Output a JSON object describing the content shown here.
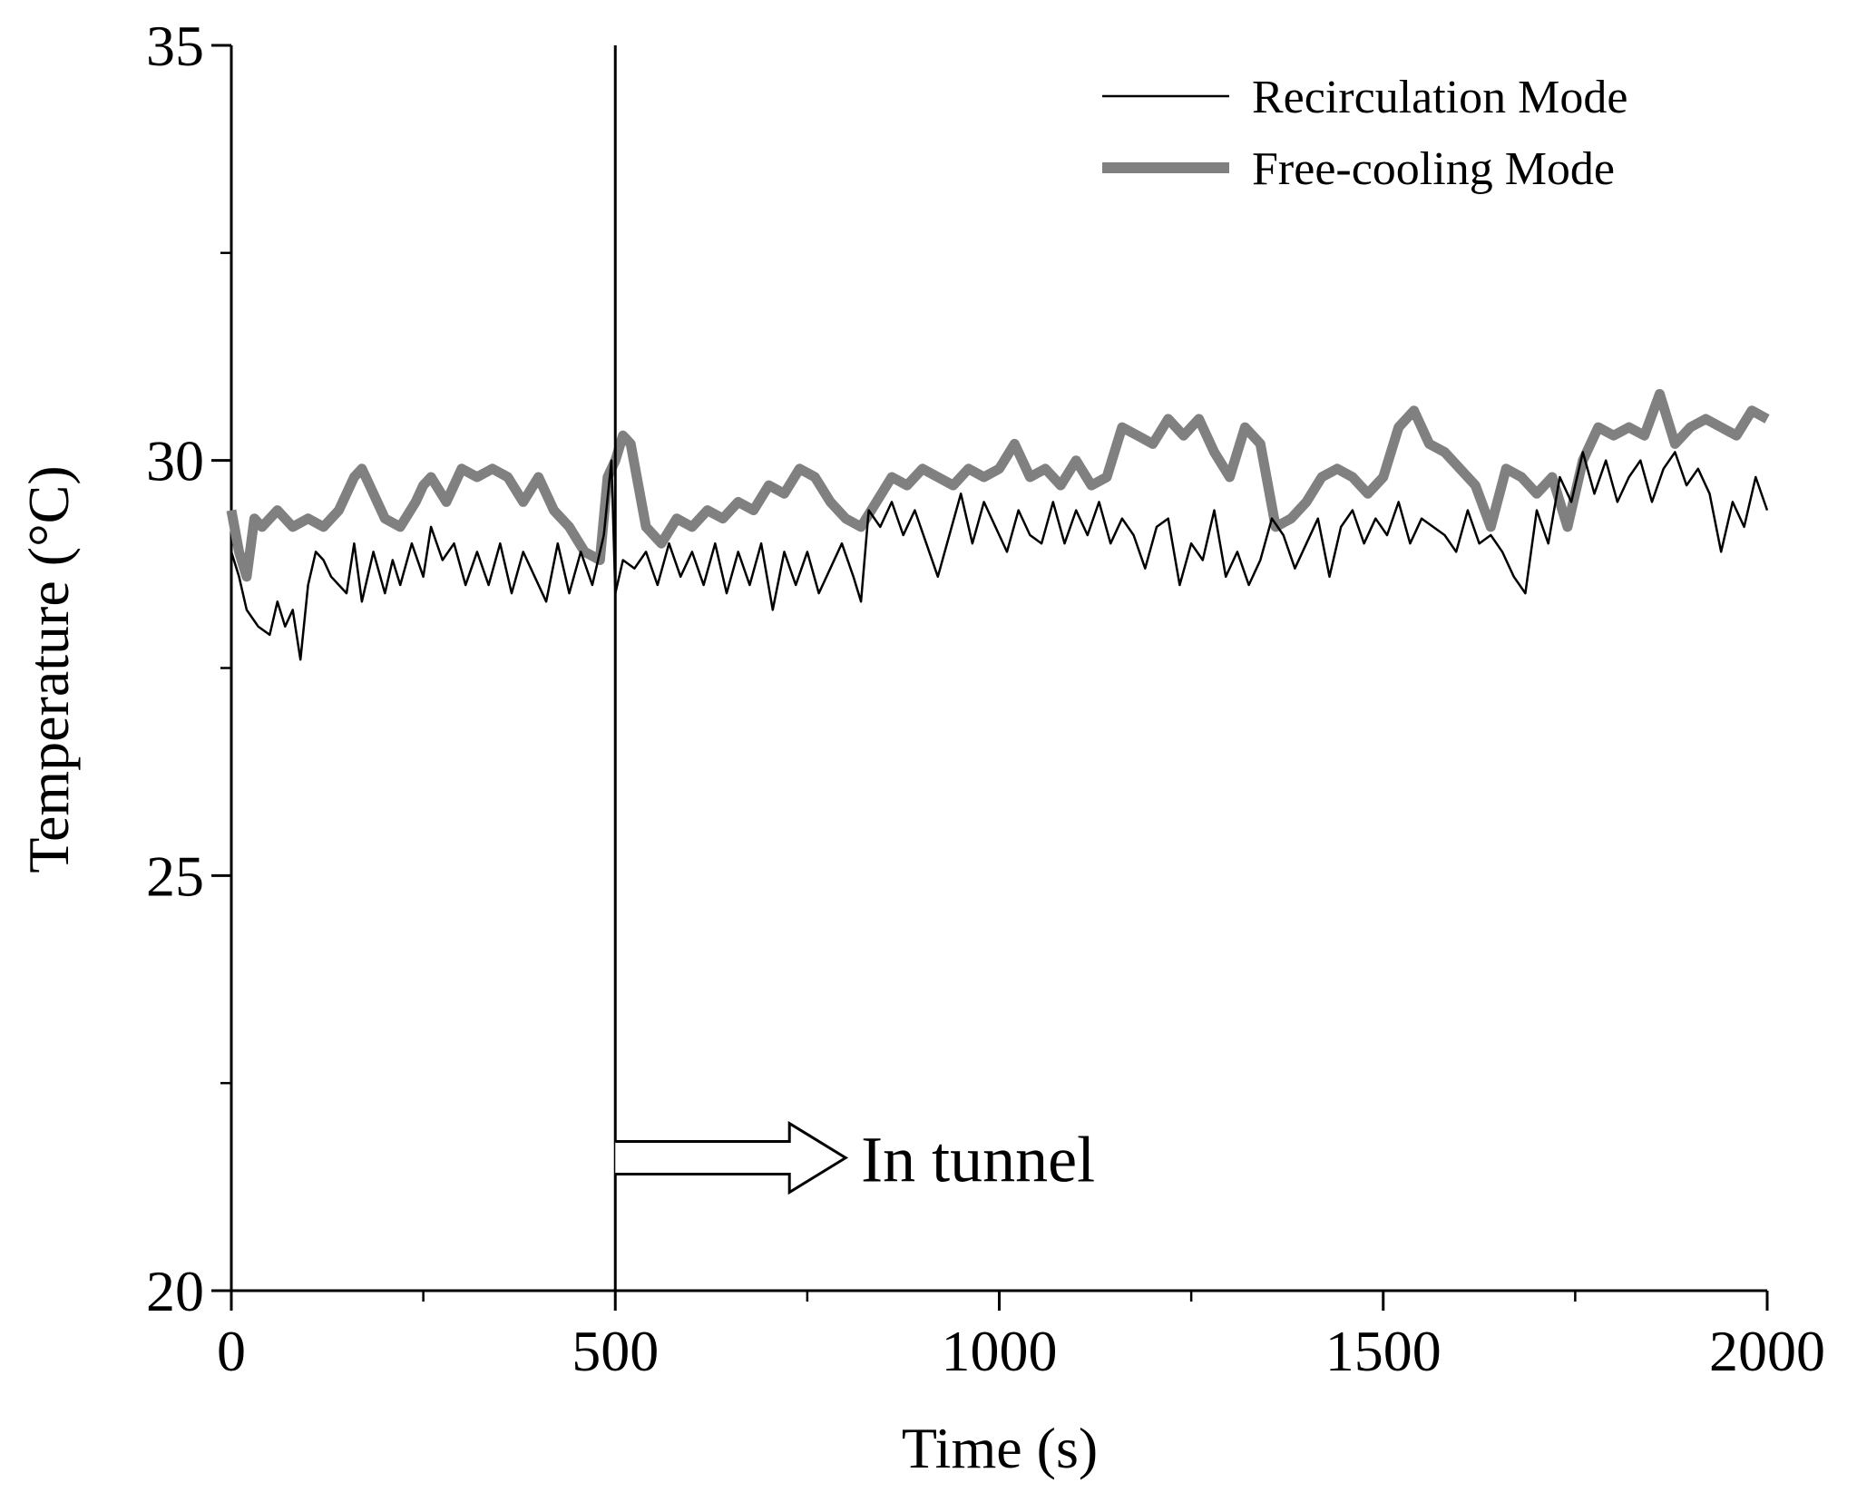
{
  "chart_data": {
    "type": "line",
    "title": "",
    "xlabel": "Time (s)",
    "ylabel": "Temperature (°C)",
    "xlim": [
      0,
      2000
    ],
    "ylim": [
      20,
      35
    ],
    "x_ticks": [
      0,
      500,
      1000,
      1500,
      2000
    ],
    "x_tick_labels": [
      "0",
      "500",
      "1000",
      "1500",
      "2000"
    ],
    "x_minor_ticks": [
      250,
      750,
      1250,
      1750
    ],
    "y_ticks": [
      20,
      25,
      30,
      35
    ],
    "y_tick_labels": [
      "20",
      "25",
      "30",
      "35"
    ],
    "y_minor_ticks": [
      22.5,
      27.5,
      32.5
    ],
    "grid": false,
    "legend_position": "top-right",
    "series": [
      {
        "name": "Recirculation Mode",
        "color": "#000000",
        "x": [
          0,
          10,
          20,
          35,
          50,
          60,
          70,
          80,
          90,
          100,
          110,
          120,
          130,
          150,
          160,
          170,
          185,
          200,
          210,
          220,
          235,
          250,
          260,
          275,
          290,
          305,
          320,
          335,
          350,
          365,
          380,
          395,
          410,
          425,
          440,
          455,
          470,
          485,
          495,
          500,
          510,
          525,
          540,
          555,
          570,
          585,
          600,
          615,
          630,
          645,
          660,
          675,
          690,
          705,
          720,
          735,
          750,
          765,
          780,
          795,
          810,
          820,
          830,
          845,
          860,
          875,
          890,
          905,
          920,
          935,
          950,
          965,
          980,
          995,
          1010,
          1025,
          1040,
          1055,
          1070,
          1085,
          1100,
          1115,
          1130,
          1145,
          1160,
          1175,
          1190,
          1205,
          1220,
          1235,
          1250,
          1265,
          1280,
          1295,
          1310,
          1325,
          1340,
          1355,
          1370,
          1385,
          1400,
          1415,
          1430,
          1445,
          1460,
          1475,
          1490,
          1505,
          1520,
          1535,
          1550,
          1565,
          1580,
          1595,
          1610,
          1625,
          1640,
          1655,
          1670,
          1685,
          1700,
          1715,
          1730,
          1745,
          1760,
          1775,
          1790,
          1805,
          1820,
          1835,
          1850,
          1865,
          1880,
          1895,
          1910,
          1925,
          1940,
          1955,
          1970,
          1985,
          2000
        ],
        "values": [
          28.9,
          28.6,
          28.2,
          28.0,
          27.9,
          28.3,
          28.0,
          28.2,
          27.6,
          28.5,
          28.9,
          28.8,
          28.6,
          28.4,
          29.0,
          28.3,
          28.9,
          28.4,
          28.8,
          28.5,
          29.0,
          28.6,
          29.2,
          28.8,
          29.0,
          28.5,
          28.9,
          28.5,
          29.0,
          28.4,
          28.9,
          28.6,
          28.3,
          29.0,
          28.4,
          28.9,
          28.5,
          29.1,
          30.0,
          28.4,
          28.8,
          28.7,
          28.9,
          28.5,
          29.0,
          28.6,
          28.9,
          28.5,
          29.0,
          28.4,
          28.9,
          28.5,
          29.0,
          28.2,
          28.9,
          28.5,
          28.9,
          28.4,
          28.7,
          29.0,
          28.6,
          28.3,
          29.4,
          29.2,
          29.5,
          29.1,
          29.4,
          29.0,
          28.6,
          29.1,
          29.6,
          29.0,
          29.5,
          29.2,
          28.9,
          29.4,
          29.1,
          29.0,
          29.5,
          29.0,
          29.4,
          29.1,
          29.5,
          29.0,
          29.3,
          29.1,
          28.7,
          29.2,
          29.3,
          28.5,
          29.0,
          28.8,
          29.4,
          28.6,
          28.9,
          28.5,
          28.8,
          29.3,
          29.1,
          28.7,
          29.0,
          29.3,
          28.6,
          29.2,
          29.4,
          29.0,
          29.3,
          29.1,
          29.5,
          29.0,
          29.3,
          29.2,
          29.1,
          28.9,
          29.4,
          29.0,
          29.1,
          28.9,
          28.6,
          28.4,
          29.4,
          29.0,
          29.8,
          29.5,
          30.1,
          29.6,
          30.0,
          29.5,
          29.8,
          30.0,
          29.5,
          29.9,
          30.1,
          29.7,
          29.9,
          29.6,
          28.9,
          29.5,
          29.2,
          29.8,
          29.4
        ]
      },
      {
        "name": "Free-cooling Mode",
        "color": "#808080",
        "x": [
          0,
          10,
          20,
          30,
          40,
          60,
          80,
          100,
          120,
          140,
          160,
          170,
          180,
          200,
          220,
          240,
          250,
          260,
          280,
          300,
          320,
          340,
          360,
          380,
          400,
          420,
          440,
          460,
          480,
          490,
          500,
          510,
          520,
          540,
          560,
          580,
          600,
          620,
          640,
          660,
          680,
          700,
          720,
          740,
          760,
          780,
          800,
          820,
          840,
          860,
          880,
          900,
          920,
          940,
          960,
          980,
          1000,
          1020,
          1040,
          1060,
          1080,
          1100,
          1120,
          1140,
          1160,
          1180,
          1200,
          1220,
          1240,
          1260,
          1280,
          1300,
          1320,
          1340,
          1360,
          1380,
          1400,
          1420,
          1440,
          1460,
          1480,
          1500,
          1520,
          1540,
          1560,
          1580,
          1600,
          1620,
          1640,
          1660,
          1680,
          1700,
          1720,
          1740,
          1760,
          1780,
          1800,
          1820,
          1840,
          1860,
          1880,
          1900,
          1920,
          1940,
          1960,
          1980,
          2000
        ],
        "values": [
          29.4,
          28.9,
          28.6,
          29.3,
          29.2,
          29.4,
          29.2,
          29.3,
          29.2,
          29.4,
          29.8,
          29.9,
          29.7,
          29.3,
          29.2,
          29.5,
          29.7,
          29.8,
          29.5,
          29.9,
          29.8,
          29.9,
          29.8,
          29.5,
          29.8,
          29.4,
          29.2,
          28.9,
          28.8,
          29.8,
          30.0,
          30.3,
          30.2,
          29.2,
          29.0,
          29.3,
          29.2,
          29.4,
          29.3,
          29.5,
          29.4,
          29.7,
          29.6,
          29.9,
          29.8,
          29.5,
          29.3,
          29.2,
          29.5,
          29.8,
          29.7,
          29.9,
          29.8,
          29.7,
          29.9,
          29.8,
          29.9,
          30.2,
          29.8,
          29.9,
          29.7,
          30.0,
          29.7,
          29.8,
          30.4,
          30.3,
          30.2,
          30.5,
          30.3,
          30.5,
          30.1,
          29.8,
          30.4,
          30.2,
          29.2,
          29.3,
          29.5,
          29.8,
          29.9,
          29.8,
          29.6,
          29.8,
          30.4,
          30.6,
          30.2,
          30.1,
          29.9,
          29.7,
          29.2,
          29.9,
          29.8,
          29.6,
          29.8,
          29.2,
          30.0,
          30.4,
          30.3,
          30.4,
          30.3,
          30.8,
          30.2,
          30.4,
          30.5,
          30.4,
          30.3,
          30.6,
          30.5
        ]
      }
    ],
    "annotations": [
      {
        "type": "vline",
        "x": 500,
        "color": "#000000"
      },
      {
        "type": "arrow",
        "x_start": 500,
        "x_end": 800,
        "y": 21.6,
        "text": "In tunnel",
        "text_x": 820
      }
    ]
  }
}
